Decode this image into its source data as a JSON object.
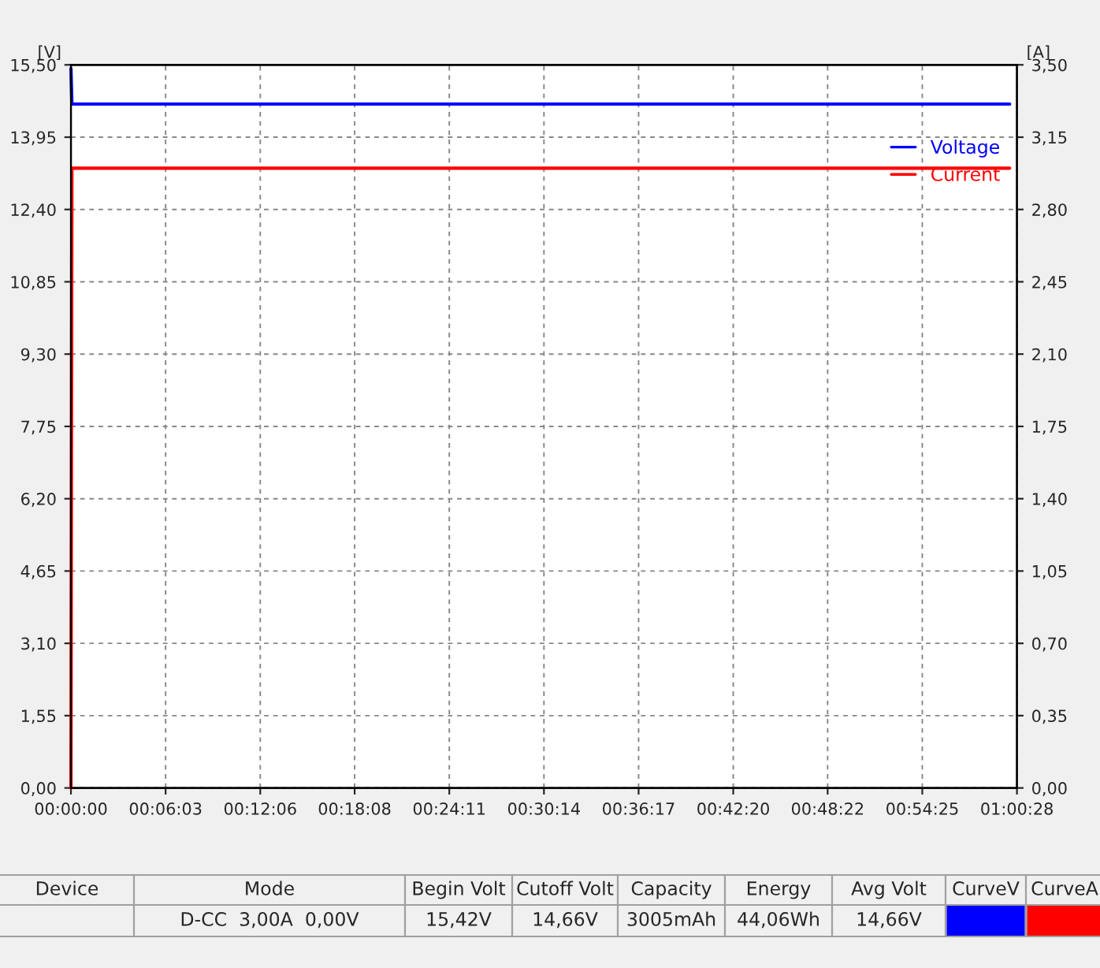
{
  "chart_data": {
    "type": "line",
    "ylabel": "[V]",
    "y2label": "[A]",
    "x": [
      0,
      0.001,
      1.0
    ],
    "series": [
      {
        "name": "Voltage",
        "color": "#0000ff",
        "values": [
          15.42,
          14.66,
          14.66
        ]
      },
      {
        "name": "Current",
        "color": "#ff0000",
        "values": [
          0,
          3.0,
          3.0
        ],
        "axis": "y2"
      }
    ],
    "xlim": [
      0,
      1.00778
    ],
    "xticks": [
      {
        "value": 0,
        "label": "00:00:00"
      },
      {
        "value": 0.10083,
        "label": "00:06:03"
      },
      {
        "value": 0.20167,
        "label": "00:12:06"
      },
      {
        "value": 0.30222,
        "label": "00:18:08"
      },
      {
        "value": 0.40306,
        "label": "00:24:11"
      },
      {
        "value": 0.50389,
        "label": "00:30:14"
      },
      {
        "value": 0.60472,
        "label": "00:36:17"
      },
      {
        "value": 0.70556,
        "label": "00:42:20"
      },
      {
        "value": 0.80611,
        "label": "00:48:22"
      },
      {
        "value": 0.90694,
        "label": "00:54:25"
      },
      {
        "value": 1.00778,
        "label": "01:00:28"
      }
    ],
    "ylim": [
      0,
      15.5
    ],
    "yticks": [
      {
        "value": 0,
        "label": "0,00"
      },
      {
        "value": 1.55,
        "label": "1,55"
      },
      {
        "value": 3.1,
        "label": "3,10"
      },
      {
        "value": 4.65,
        "label": "4,65"
      },
      {
        "value": 6.2,
        "label": "6,20"
      },
      {
        "value": 7.75,
        "label": "7,75"
      },
      {
        "value": 9.3,
        "label": "9,30"
      },
      {
        "value": 10.85,
        "label": "10,85"
      },
      {
        "value": 12.4,
        "label": "12,40"
      },
      {
        "value": 13.95,
        "label": "13,95"
      },
      {
        "value": 15.5,
        "label": "15,50"
      }
    ],
    "y2lim": [
      0,
      3.5
    ],
    "y2ticks": [
      {
        "value": 0,
        "label": "0,00"
      },
      {
        "value": 0.35,
        "label": "0,35"
      },
      {
        "value": 0.7,
        "label": "0,70"
      },
      {
        "value": 1.05,
        "label": "1,05"
      },
      {
        "value": 1.4,
        "label": "1,40"
      },
      {
        "value": 1.75,
        "label": "1,75"
      },
      {
        "value": 2.1,
        "label": "2,10"
      },
      {
        "value": 2.45,
        "label": "2,45"
      },
      {
        "value": 2.8,
        "label": "2,80"
      },
      {
        "value": 3.15,
        "label": "3,15"
      },
      {
        "value": 3.5,
        "label": "3,50"
      }
    ],
    "grid": true,
    "legend": "top right",
    "annotations": [
      "Device",
      "Mode",
      "Begin Volt",
      "Cutoff Volt",
      "Capacity",
      "Energy",
      "Avg Volt",
      "CurveV",
      "CurveA",
      "D-CC  3,00A  0,00V",
      "15,42V",
      "14,66V",
      "3005mAh",
      "44,06Wh",
      "14,66V"
    ]
  }
}
